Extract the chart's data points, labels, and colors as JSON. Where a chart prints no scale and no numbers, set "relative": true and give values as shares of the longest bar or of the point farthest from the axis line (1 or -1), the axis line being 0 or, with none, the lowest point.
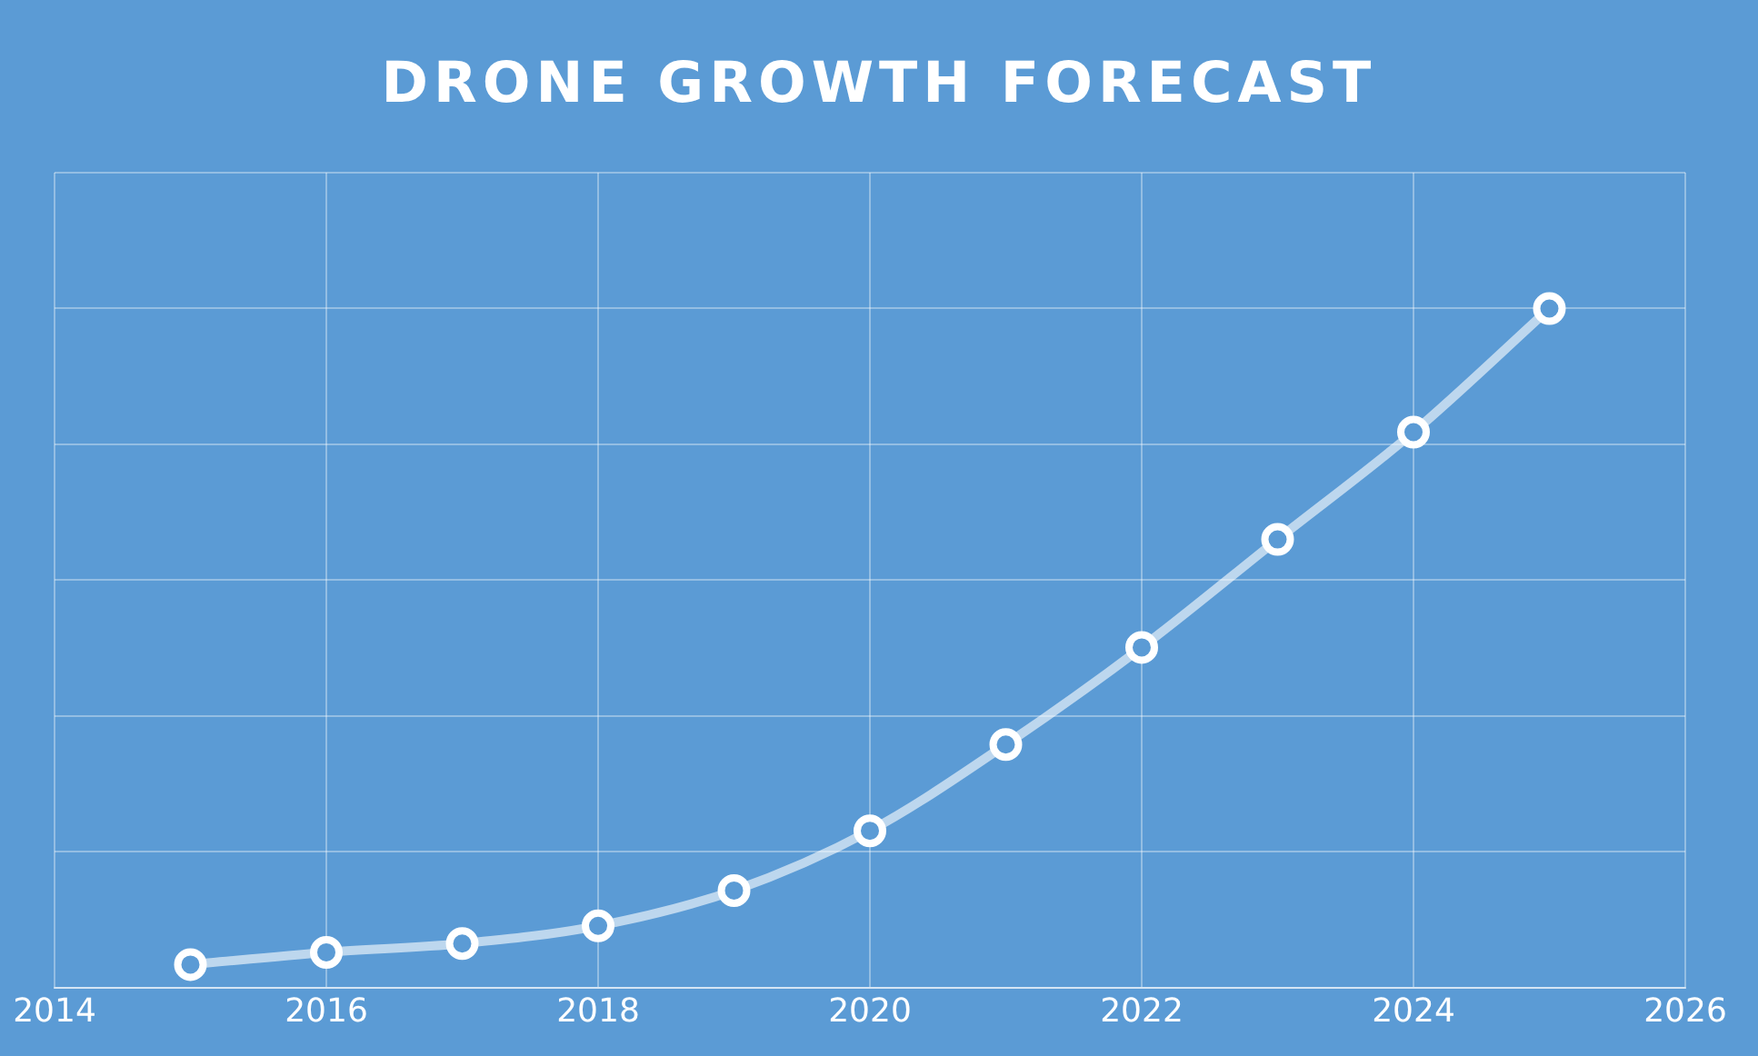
{
  "chart_data": {
    "type": "line",
    "title": "DRONE GROWTH FORECAST",
    "x": [
      2015,
      2016,
      2017,
      2018,
      2019,
      2020,
      2021,
      2022,
      2023,
      2024,
      2025
    ],
    "series": [
      {
        "color": "#ffffff",
        "values": [
          0.034,
          0.052,
          0.065,
          0.091,
          0.143,
          0.231,
          0.358,
          0.501,
          0.66,
          0.818,
          1
        ]
      }
    ],
    "relative": true,
    "xlim": [
      2014,
      2026
    ],
    "xticks": [
      2014,
      2016,
      2018,
      2020,
      2022,
      2024,
      2026
    ],
    "grid": true,
    "legend": false,
    "marker": "circle",
    "line_style": "solid",
    "tick_labels": "x"
  }
}
